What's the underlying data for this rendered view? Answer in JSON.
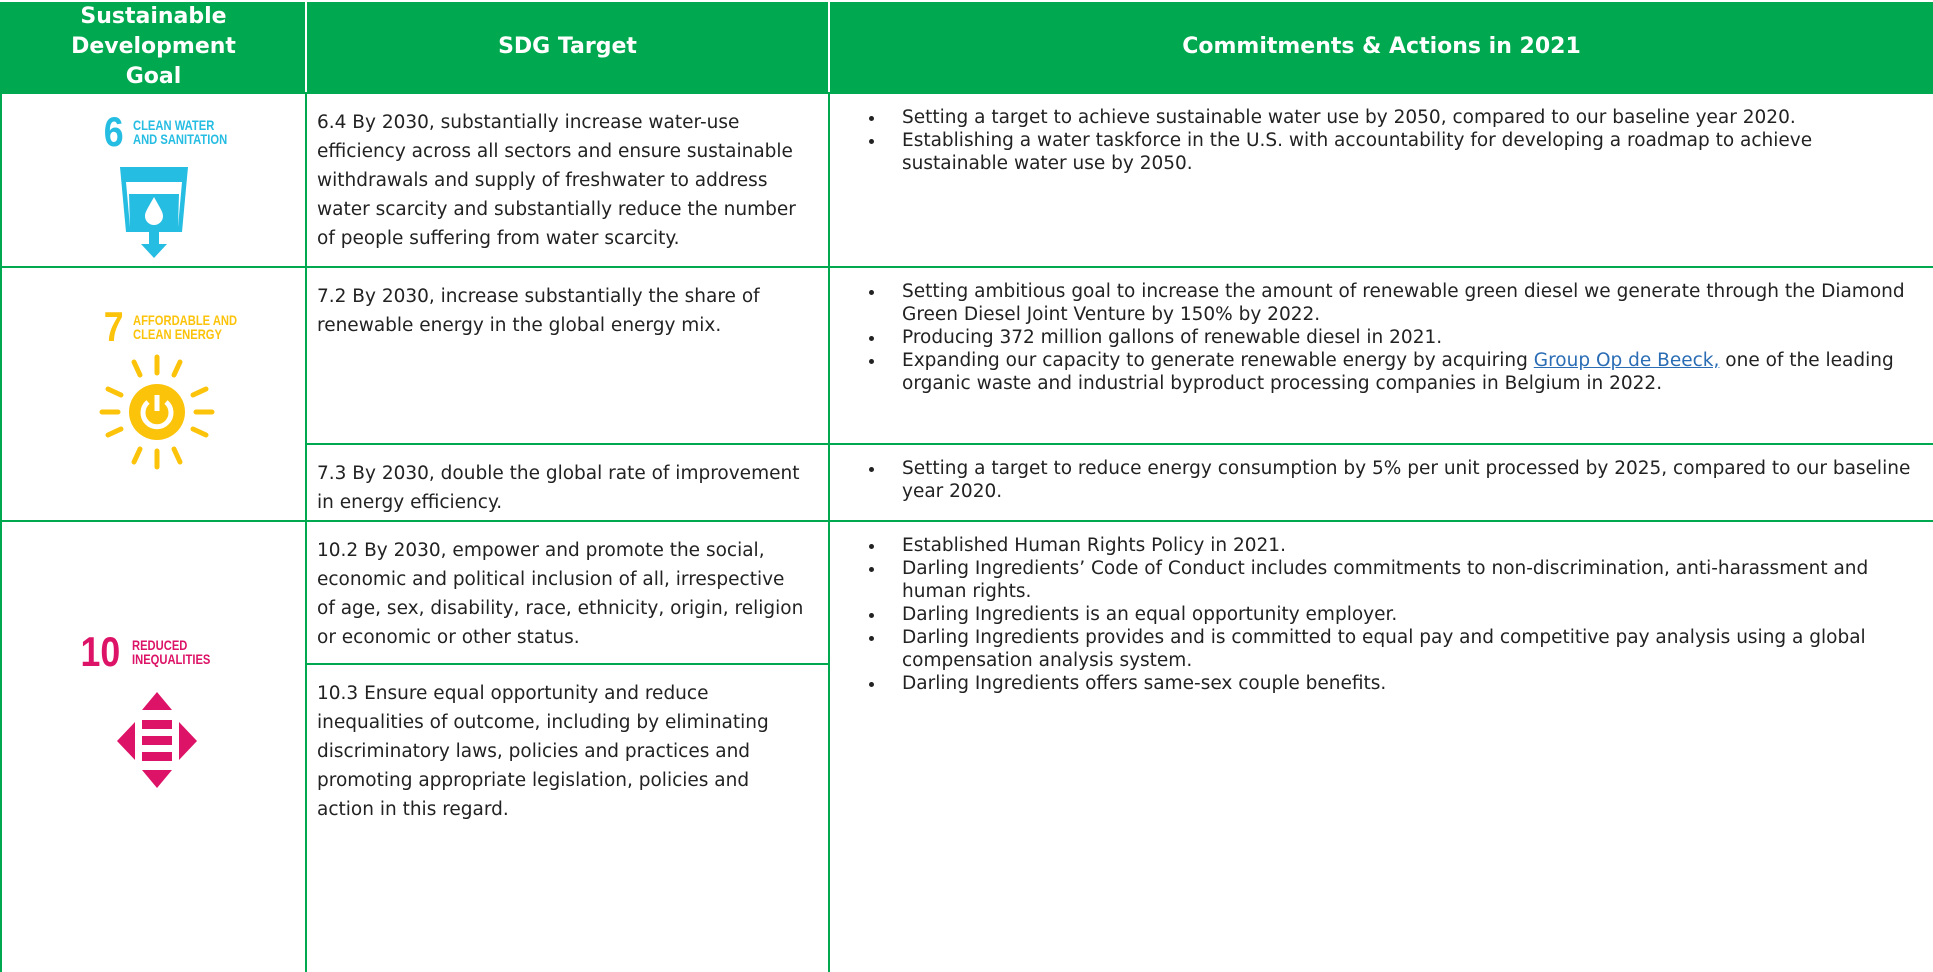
{
  "header": {
    "goal": "Sustainable Development Goal",
    "target": "SDG Target",
    "actions": "Commitments & Actions in 2021"
  },
  "goals": [
    {
      "number": "6",
      "name": [
        "CLEAN WATER",
        "AND SANITATION"
      ],
      "targets": [
        "6.4 By 2030, substantially increase water-use efficiency across all sectors and ensure sustainable withdrawals and supply of freshwater to address water scarcity and substantially reduce the number of people suffering from water scarcity."
      ],
      "action_groups": [
        [
          "Setting a target to achieve sustainable water use by 2050, compared to our baseline year 2020.",
          "Establishing a water taskforce in the U.S. with accountability for developing a roadmap to achieve sustainable water use by 2050."
        ]
      ]
    },
    {
      "number": "7",
      "name": [
        "AFFORDABLE AND",
        "CLEAN ENERGY"
      ],
      "targets": [
        "7.2 By 2030, increase substantially the share of renewable energy in the global energy mix.",
        "7.3 By 2030, double the global rate of improvement in energy efficiency."
      ],
      "action_groups": [
        [
          "Setting ambitious goal to increase the amount of renewable green diesel we generate through the Diamond Green Diesel Joint Venture by 150% by 2022.",
          "Producing 372 million gallons of renewable diesel in 2021.",
          {
            "text": "Expanding our capacity to generate renewable energy by acquiring ",
            "link": "Group Op de Beeck,",
            "text_after": " one of the leading organic waste and industrial byproduct processing companies in Belgium in 2022."
          }
        ],
        [
          "Setting a target to reduce energy consumption by 5% per unit processed by 2025, compared to our baseline year 2020."
        ]
      ]
    },
    {
      "number": "10",
      "name": [
        "REDUCED",
        "INEQUALITIES"
      ],
      "targets": [
        "10.2 By 2030, empower and promote the social, economic and political inclusion of all, irrespective of age, sex, disability, race, ethnicity, origin, religion or economic or other status.",
        "10.3 Ensure equal opportunity and reduce inequalities of outcome, including by eliminating discriminatory laws, policies and practices and promoting appropriate legislation, policies and action in this regard."
      ],
      "action_groups": [
        [
          "Established Human Rights Policy in 2021.",
          "Darling Ingredients’ Code of Conduct includes commitments to non-discrimination, anti-harassment and human rights.",
          "Darling Ingredients is an equal opportunity employer.",
          "Darling Ingredients provides and is committed to equal pay and competitive pay analysis using a global compensation analysis system.",
          "Darling Ingredients offers same-sex couple benefits."
        ]
      ]
    }
  ]
}
